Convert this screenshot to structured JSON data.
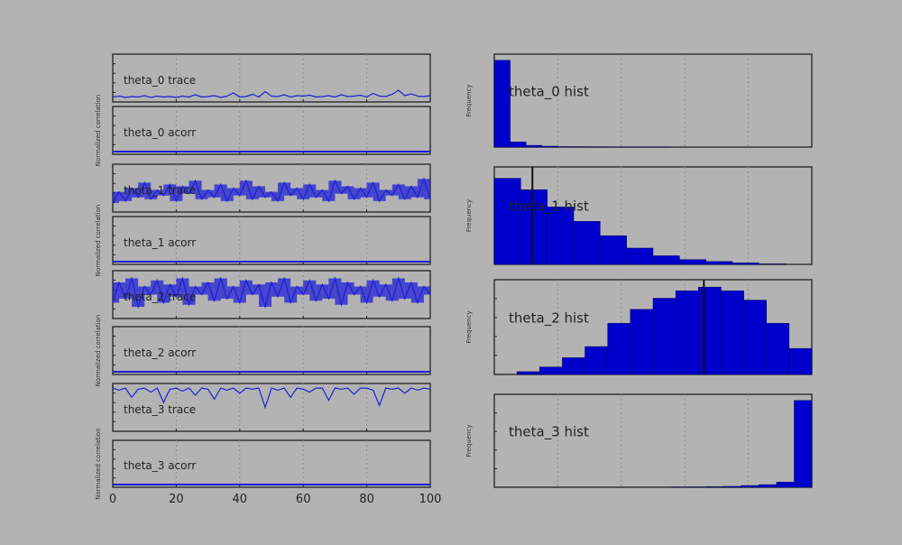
{
  "colors": {
    "background": "#b3b3b3",
    "line": "#1f1fd6",
    "bar": "#0000cc",
    "frame": "#222222",
    "vline": "#111111"
  },
  "chart_data": [
    {
      "type": "line",
      "panel": "theta_0 trace",
      "x": [
        0,
        2,
        4,
        6,
        8,
        10,
        12,
        14,
        16,
        18,
        20,
        22,
        24,
        26,
        28,
        30,
        32,
        34,
        36,
        38,
        40,
        42,
        44,
        46,
        48,
        50,
        52,
        54,
        56,
        58,
        60,
        62,
        64,
        66,
        68,
        70,
        72,
        74,
        76,
        78,
        80,
        82,
        84,
        86,
        88,
        90,
        92,
        94,
        96,
        98,
        100
      ],
      "y": [
        0.3,
        0.5,
        0.2,
        0.4,
        0.3,
        0.6,
        0.2,
        0.5,
        0.3,
        0.4,
        0.2,
        0.5,
        0.3,
        0.8,
        0.3,
        0.4,
        0.6,
        0.2,
        0.5,
        1.2,
        0.3,
        0.4,
        0.9,
        0.3,
        1.5,
        0.5,
        0.4,
        0.8,
        0.3,
        0.6,
        0.5,
        0.7,
        0.3,
        0.4,
        0.6,
        0.3,
        0.8,
        0.4,
        0.5,
        0.7,
        0.3,
        1.1,
        0.5,
        0.4,
        0.9,
        1.8,
        0.6,
        1.0,
        0.5,
        0.4,
        0.6
      ],
      "xlim": [
        0,
        100
      ],
      "ylim": [
        0,
        9
      ]
    },
    {
      "type": "line",
      "panel": "theta_0 acorr",
      "x": [
        0,
        100
      ],
      "y": [
        0,
        0
      ],
      "xlim": [
        0,
        100
      ],
      "ylim": [
        0,
        1
      ]
    },
    {
      "type": "line",
      "panel": "theta_1 trace",
      "x": [
        0,
        2,
        4,
        6,
        8,
        10,
        12,
        14,
        16,
        18,
        20,
        22,
        24,
        26,
        28,
        30,
        32,
        34,
        36,
        38,
        40,
        42,
        44,
        46,
        48,
        50,
        52,
        54,
        56,
        58,
        60,
        62,
        64,
        66,
        68,
        70,
        72,
        74,
        76,
        78,
        80,
        82,
        84,
        86,
        88,
        90,
        92,
        94,
        96,
        98,
        100
      ],
      "y": [
        3,
        9,
        4,
        11,
        6,
        14,
        5,
        10,
        7,
        13,
        4,
        12,
        8,
        15,
        5,
        10,
        6,
        13,
        4,
        11,
        7,
        15,
        5,
        12,
        6,
        9,
        4,
        14,
        7,
        11,
        5,
        13,
        6,
        10,
        4,
        15,
        8,
        12,
        5,
        11,
        6,
        14,
        4,
        10,
        7,
        13,
        5,
        12,
        6,
        16,
        5
      ],
      "xlim": [
        0,
        100
      ],
      "ylim": [
        0,
        22
      ]
    },
    {
      "type": "line",
      "panel": "theta_1 acorr",
      "x": [
        0,
        100
      ],
      "y": [
        0,
        0
      ],
      "xlim": [
        0,
        100
      ],
      "ylim": [
        0,
        1
      ]
    },
    {
      "type": "line",
      "panel": "theta_2 trace",
      "x": [
        0,
        2,
        4,
        6,
        8,
        10,
        12,
        14,
        16,
        18,
        20,
        22,
        24,
        26,
        28,
        30,
        32,
        34,
        36,
        38,
        40,
        42,
        44,
        46,
        48,
        50,
        52,
        54,
        56,
        58,
        60,
        62,
        64,
        66,
        68,
        70,
        72,
        74,
        76,
        78,
        80,
        82,
        84,
        86,
        88,
        90,
        92,
        94,
        96,
        98,
        100
      ],
      "y": [
        0.3,
        0.8,
        0.4,
        0.9,
        0.2,
        0.7,
        0.5,
        0.85,
        0.3,
        0.75,
        0.45,
        0.9,
        0.25,
        0.7,
        0.5,
        0.8,
        0.35,
        0.9,
        0.4,
        0.7,
        0.3,
        0.85,
        0.5,
        0.75,
        0.2,
        0.8,
        0.45,
        0.9,
        0.3,
        0.7,
        0.5,
        0.85,
        0.35,
        0.75,
        0.4,
        0.9,
        0.25,
        0.8,
        0.5,
        0.7,
        0.3,
        0.85,
        0.45,
        0.75,
        0.35,
        0.9,
        0.4,
        0.8,
        0.3,
        0.7,
        0.5
      ],
      "xlim": [
        0,
        100
      ],
      "ylim": [
        0,
        1
      ]
    },
    {
      "type": "line",
      "panel": "theta_2 acorr",
      "x": [
        0,
        100
      ],
      "y": [
        0,
        0
      ],
      "xlim": [
        0,
        100
      ],
      "ylim": [
        0,
        1
      ]
    },
    {
      "type": "line",
      "panel": "theta_3 trace",
      "x": [
        0,
        2,
        4,
        6,
        8,
        10,
        12,
        14,
        16,
        18,
        20,
        22,
        24,
        26,
        28,
        30,
        32,
        34,
        36,
        38,
        40,
        42,
        44,
        46,
        48,
        50,
        52,
        54,
        56,
        58,
        60,
        62,
        64,
        66,
        68,
        70,
        72,
        74,
        76,
        78,
        80,
        82,
        84,
        86,
        88,
        90,
        92,
        94,
        96,
        98,
        100
      ],
      "y": [
        0.99,
        0.97,
        0.99,
        0.9,
        0.98,
        0.99,
        0.95,
        0.99,
        0.85,
        0.98,
        0.99,
        0.96,
        0.99,
        0.92,
        0.99,
        0.98,
        0.88,
        0.99,
        0.97,
        0.99,
        0.94,
        0.99,
        0.98,
        0.99,
        0.8,
        0.99,
        0.97,
        0.99,
        0.9,
        0.99,
        0.98,
        0.95,
        0.99,
        0.99,
        0.87,
        0.99,
        0.98,
        0.99,
        0.93,
        0.99,
        0.99,
        0.97,
        0.82,
        0.99,
        0.98,
        0.99,
        0.94,
        0.99,
        0.97,
        0.99,
        0.98
      ],
      "xlim": [
        0,
        100
      ],
      "ylim": [
        0.6,
        1.0
      ]
    },
    {
      "type": "line",
      "panel": "theta_3 acorr",
      "x": [
        0,
        100
      ],
      "y": [
        0,
        0
      ],
      "xlim": [
        0,
        100
      ],
      "ylim": [
        0,
        1
      ]
    },
    {
      "type": "bar",
      "panel": "theta_0 hist",
      "values": [
        1.0,
        0.06,
        0.02,
        0.01,
        0.005,
        0.004,
        0.003,
        0.002,
        0.001,
        0.001,
        0.001,
        0.0,
        0.0,
        0.0,
        0.0,
        0.0,
        0.0,
        0.0,
        0.0,
        0.0
      ],
      "ylabel": "Frequency",
      "ylim": [
        0,
        1.05
      ],
      "vline": null
    },
    {
      "type": "bar",
      "panel": "theta_1 hist",
      "values": [
        0.9,
        0.78,
        0.6,
        0.45,
        0.3,
        0.17,
        0.09,
        0.05,
        0.03,
        0.015,
        0.005,
        0.0
      ],
      "ylabel": "Frequency",
      "ylim": [
        0,
        1.0
      ],
      "vline": 0.12
    },
    {
      "type": "bar",
      "panel": "theta_2 hist",
      "values": [
        0.0,
        0.03,
        0.08,
        0.18,
        0.3,
        0.55,
        0.7,
        0.82,
        0.9,
        0.94,
        0.9,
        0.8,
        0.55,
        0.28
      ],
      "ylabel": "Frequency",
      "ylim": [
        0,
        1.0
      ],
      "vline": 0.66
    },
    {
      "type": "bar",
      "panel": "theta_3 hist",
      "values": [
        0.0,
        0.0,
        0.0,
        0.0,
        0.0,
        0.0,
        0.0,
        0.0,
        0.0,
        0.0,
        0.002,
        0.004,
        0.006,
        0.01,
        0.02,
        0.03,
        0.06,
        1.0
      ],
      "ylabel": "Frequency",
      "ylim": [
        0,
        1.05
      ],
      "vline": null
    }
  ],
  "labels": {
    "t0_trace": "theta_0 trace",
    "t0_acorr": "theta_0 acorr",
    "t1_trace": "theta_1 trace",
    "t1_acorr": "theta_1 acorr",
    "t2_trace": "theta_2 trace",
    "t2_acorr": "theta_2 acorr",
    "t3_trace": "theta_3 trace",
    "t3_acorr": "theta_3 acorr",
    "t0_hist": "theta_0 hist",
    "t1_hist": "theta_1 hist",
    "t2_hist": "theta_2 hist",
    "t3_hist": "theta_3 hist",
    "ylabel_acorr": "Normalized correlation",
    "ylabel_hist": "Frequency"
  },
  "bottom_axis": {
    "ticks": [
      "0",
      "20",
      "40",
      "60",
      "80",
      "100"
    ]
  }
}
